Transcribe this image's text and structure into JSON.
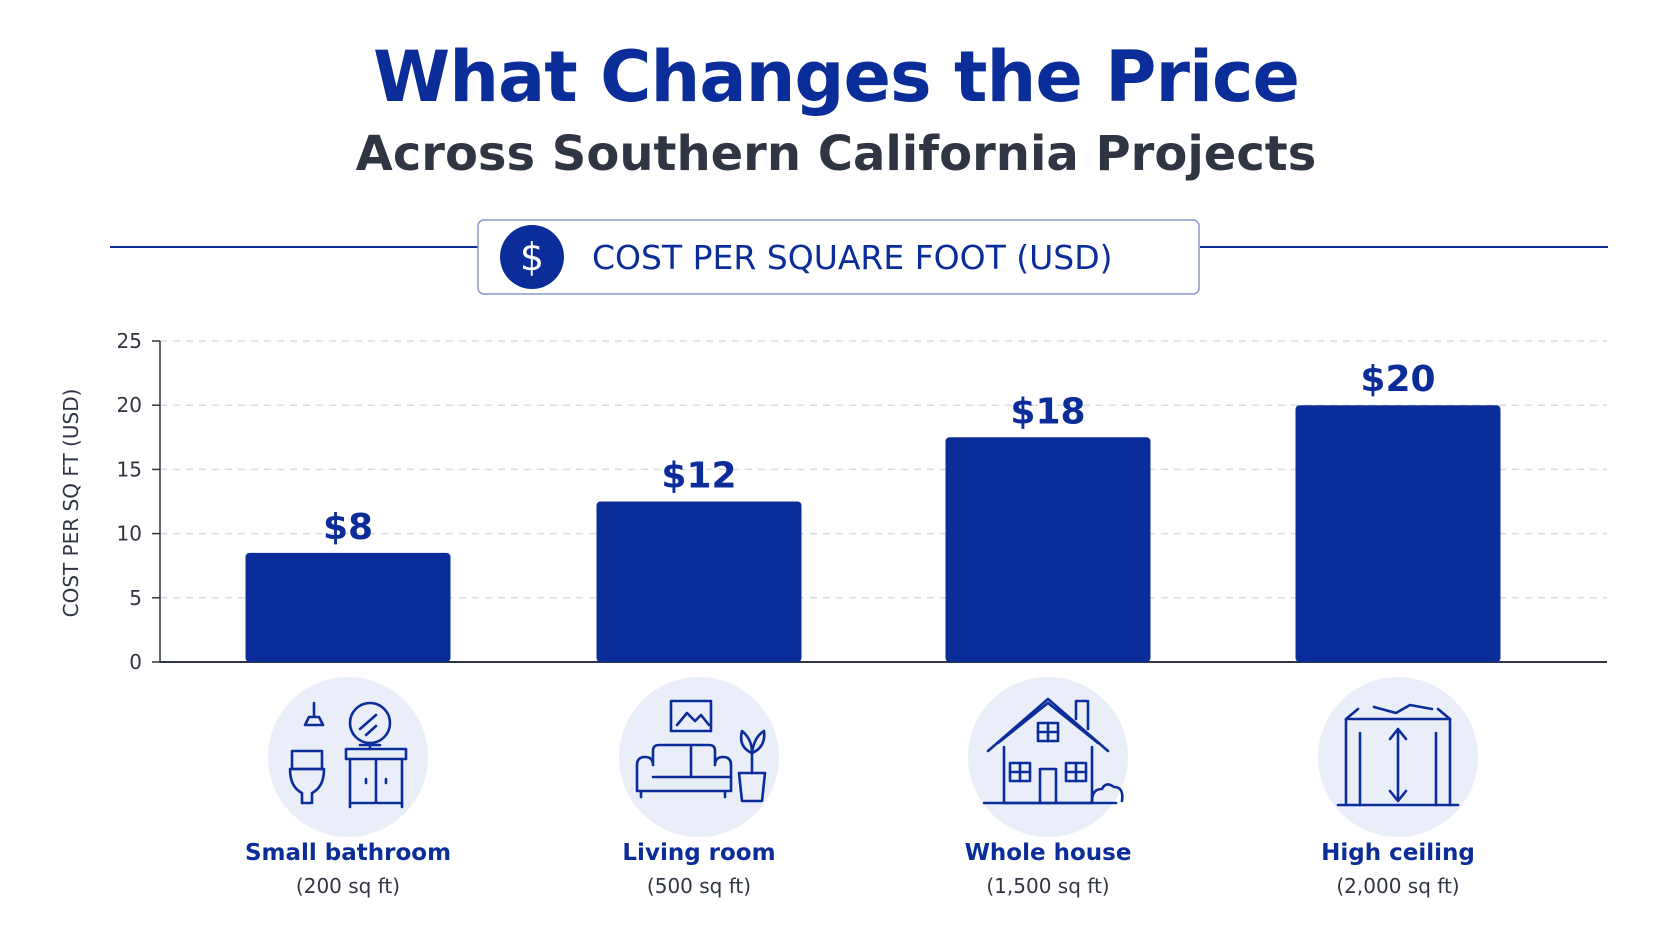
{
  "colors": {
    "accent": "#0b2d99",
    "text": "#2f3543",
    "grid": "#d9dce3",
    "icon_bg": "#e9eef9"
  },
  "chart_data": {
    "type": "bar",
    "title": "What Changes the Price",
    "subtitle": "Across Southern California Projects",
    "legend_label": "COST PER SQUARE FOOT (USD)",
    "legend_icon": "dollar-icon",
    "ylabel": "COST PER SQ FT (USD)",
    "xlabel": "",
    "ylim": [
      0,
      25
    ],
    "yticks": [
      0,
      5,
      10,
      15,
      20,
      25
    ],
    "grid": true,
    "categories": [
      {
        "name": "Small bathroom",
        "size": "(200 sq ft)",
        "icon": "bathroom-icon"
      },
      {
        "name": "Living room",
        "size": "(500 sq ft)",
        "icon": "living-room-icon"
      },
      {
        "name": "Whole house",
        "size": "(1,500 sq ft)",
        "icon": "house-icon"
      },
      {
        "name": "High ceiling",
        "size": "(2,000 sq ft)",
        "icon": "high-ceiling-icon"
      }
    ],
    "values": [
      8.5,
      12.5,
      17.5,
      20
    ],
    "value_labels": [
      "$8",
      "$12",
      "$18",
      "$20"
    ]
  }
}
